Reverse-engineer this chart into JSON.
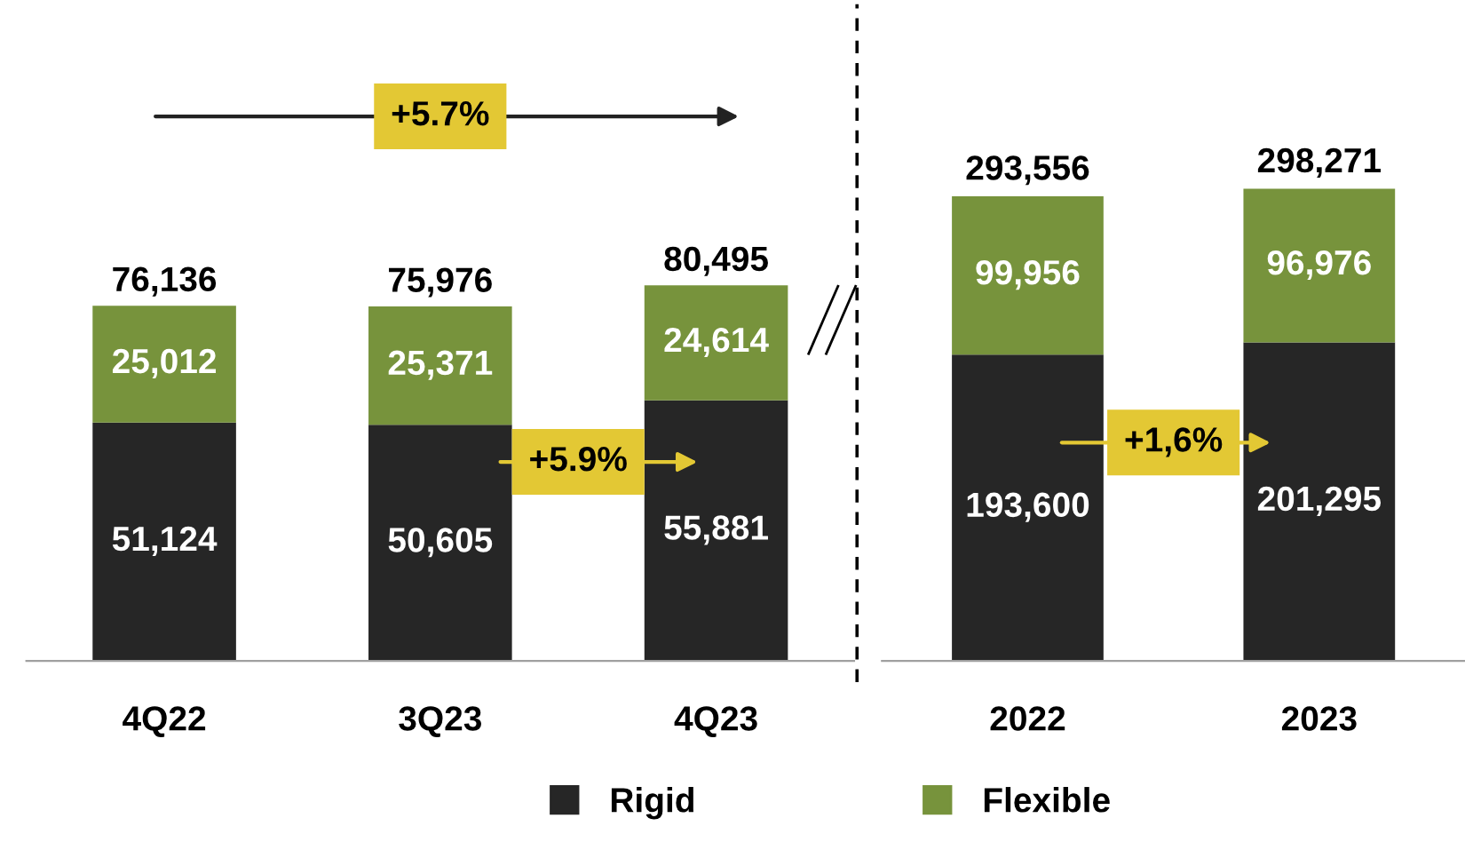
{
  "chart_data": [
    {
      "type": "bar",
      "stacked": true,
      "categories": [
        "4Q22",
        "3Q23",
        "4Q23"
      ],
      "series": [
        {
          "name": "Rigid",
          "color": "#262626",
          "values": [
            51124,
            50605,
            55881
          ],
          "value_labels": [
            "51,124",
            "50,605",
            "55,881"
          ]
        },
        {
          "name": "Flexible",
          "color": "#77933c",
          "values": [
            25012,
            25371,
            24614
          ],
          "value_labels": [
            "25,012",
            "25,371",
            "24,614"
          ]
        }
      ],
      "totals": [
        "76,136",
        "75,976",
        "80,495"
      ],
      "annotations": [
        "+5.7%",
        "+5.9%"
      ],
      "legend": "bottom",
      "grid": false
    },
    {
      "type": "bar",
      "stacked": true,
      "categories": [
        "2022",
        "2023"
      ],
      "series": [
        {
          "name": "Rigid",
          "color": "#262626",
          "values": [
            193600,
            201295
          ],
          "value_labels": [
            "193,600",
            "201,295"
          ]
        },
        {
          "name": "Flexible",
          "color": "#77933c",
          "values": [
            99956,
            96976
          ],
          "value_labels": [
            "99,956",
            "96,976"
          ]
        }
      ],
      "totals": [
        "293,556",
        "298,271"
      ],
      "annotations": [
        "+1,6%"
      ],
      "grid": false
    }
  ]
}
